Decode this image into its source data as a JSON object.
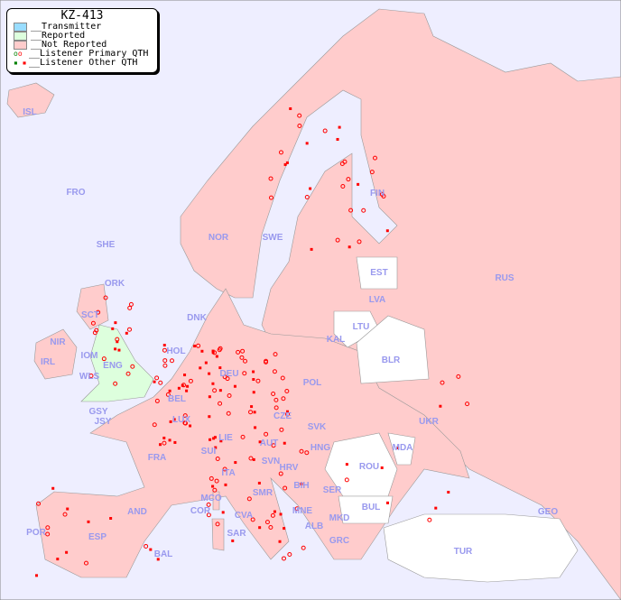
{
  "title": "KZ-413",
  "legend": [
    {
      "label": "__Transmitter",
      "color": "#99ddff"
    },
    {
      "label": "__Reported",
      "color": "#ddffdd"
    },
    {
      "label": "__Not Reported",
      "color": "#ffcccc"
    },
    {
      "label": "__Listener Primary QTH",
      "color": "#ff0000"
    },
    {
      "label": "__Listener Other QTH",
      "color": "#ff0000"
    }
  ],
  "colors": {
    "sea": "#eeeeff",
    "not_reported": "#ffcccc",
    "reported": "#ddffdd",
    "none": "#ffffff",
    "label": "#9999ee",
    "marker": "#ff0000"
  },
  "labels": [
    "ISL",
    "FRO",
    "SHE",
    "ORK",
    "NOR",
    "SWE",
    "FIN",
    "EST",
    "LVA",
    "LTU",
    "KAL",
    "RUS",
    "DNK",
    "HOL",
    "DEU",
    "POL",
    "BLR",
    "IRL",
    "IOM",
    "WLS",
    "SCT",
    "NIR",
    "ENG",
    "GSY",
    "JSY",
    "BEL",
    "LUX",
    "CZE",
    "SVK",
    "UKR",
    "FRA",
    "SUI",
    "LIE",
    "AUT",
    "HNG",
    "MDA",
    "SVN",
    "HRV",
    "ROU",
    "ITA",
    "BIH",
    "SER",
    "MCO",
    "SMR",
    "BUL",
    "MNE",
    "GEO",
    "COR",
    "CVA",
    "MKD",
    "ALB",
    "AND",
    "POR",
    "ESP",
    "SAR",
    "GRC",
    "TUR",
    "BAL"
  ]
}
